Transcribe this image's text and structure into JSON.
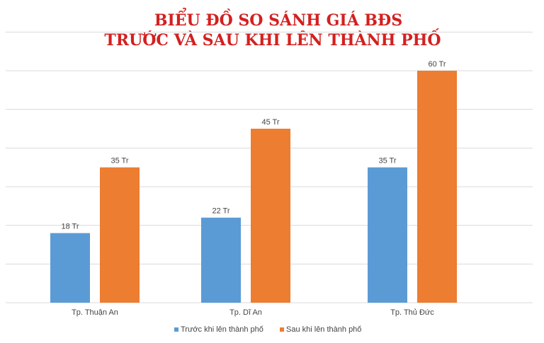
{
  "chart_data": {
    "type": "bar",
    "title_lines": [
      "BIỂU ĐỒ SO SÁNH GIÁ BĐS",
      "TRƯỚC VÀ SAU KHI LÊN THÀNH PHỐ"
    ],
    "categories": [
      "Tp. Thuận An",
      "Tp. Dĩ An",
      "Tp. Thủ Đức"
    ],
    "series": [
      {
        "name": "Trước khi lên thành phố",
        "values": [
          18,
          22,
          35
        ],
        "labels": [
          "18 Tr",
          "22 Tr",
          "35 Tr"
        ],
        "color": "#5b9bd5"
      },
      {
        "name": "Sau khi lên thành phố",
        "values": [
          35,
          45,
          60
        ],
        "labels": [
          "35 Tr",
          "45 Tr",
          "60 Tr"
        ],
        "color": "#ed7d31"
      }
    ],
    "ylim": [
      0,
      60
    ],
    "grid": true,
    "legend": "bottom-center",
    "gridline_color": "#d9d9d9"
  }
}
